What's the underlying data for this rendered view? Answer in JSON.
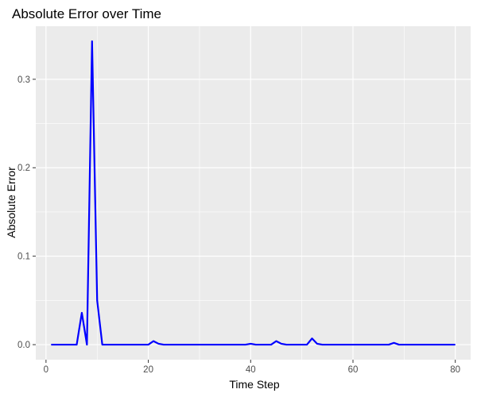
{
  "chart_data": {
    "type": "line",
    "title": "Absolute Error over Time",
    "xlabel": "Time Step",
    "ylabel": "Absolute Error",
    "xlim": [
      -2,
      83
    ],
    "ylim": [
      -0.017,
      0.36
    ],
    "x_ticks": [
      0,
      20,
      40,
      60,
      80
    ],
    "x_tick_labels": [
      "0",
      "20",
      "40",
      "60",
      "80"
    ],
    "y_ticks": [
      0.0,
      0.1,
      0.2,
      0.3
    ],
    "y_tick_labels": [
      "0.0",
      "0.1",
      "0.2",
      "0.3"
    ],
    "grid": true,
    "background": "#ebebeb",
    "grid_major_color": "#ffffff",
    "line_color": "#0000ff",
    "series": [
      {
        "x": [
          1,
          2,
          3,
          4,
          5,
          6,
          7,
          8,
          9,
          10,
          11,
          12,
          13,
          14,
          15,
          16,
          17,
          18,
          19,
          20,
          21,
          22,
          23,
          24,
          25,
          26,
          27,
          28,
          29,
          30,
          31,
          32,
          33,
          34,
          35,
          36,
          37,
          38,
          39,
          40,
          41,
          42,
          43,
          44,
          45,
          46,
          47,
          48,
          49,
          50,
          51,
          52,
          53,
          54,
          55,
          56,
          57,
          58,
          59,
          60,
          61,
          62,
          63,
          64,
          65,
          66,
          67,
          68,
          69,
          70,
          71,
          72,
          73,
          74,
          75,
          76,
          77,
          78,
          79,
          80
        ],
        "y": [
          0,
          0,
          0,
          0,
          0,
          0,
          0.036,
          0,
          0.343,
          0.05,
          0,
          0,
          0,
          0,
          0,
          0,
          0,
          0,
          0,
          0,
          0.004,
          0.001,
          0,
          0,
          0,
          0,
          0,
          0,
          0,
          0,
          0,
          0,
          0,
          0,
          0,
          0,
          0,
          0,
          0,
          0.001,
          0,
          0,
          0,
          0,
          0.004,
          0.001,
          0,
          0,
          0,
          0,
          0,
          0.007,
          0.001,
          0,
          0,
          0,
          0,
          0,
          0,
          0,
          0,
          0,
          0,
          0,
          0,
          0,
          0,
          0.002,
          0,
          0,
          0,
          0,
          0,
          0,
          0,
          0,
          0,
          0,
          0,
          0
        ]
      }
    ]
  }
}
